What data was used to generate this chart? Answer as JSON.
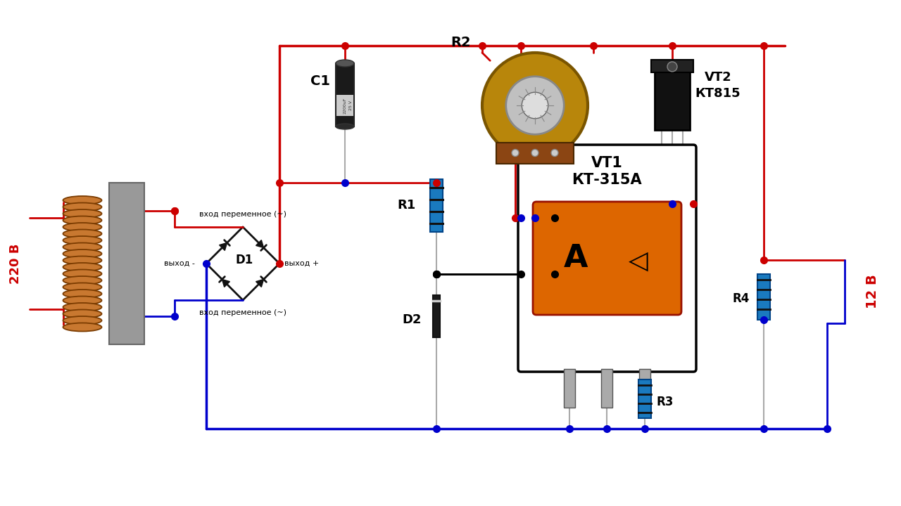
{
  "bg_color": "#ffffff",
  "red": "#cc0000",
  "blue": "#0000cc",
  "black": "#000000",
  "label_220": "220 В",
  "label_12": "12 В",
  "label_C1": "C1",
  "label_R1": "R1",
  "label_R2": "R2",
  "label_R3": "R3",
  "label_R4": "R4",
  "label_D1": "D1",
  "label_D2": "D2",
  "label_VT1": "VT1",
  "label_VT1_sub": "КТ-315А",
  "label_VT2": "VT2",
  "label_VT2_sub": "КТ815",
  "label_AC1": "вход переменное (~)",
  "label_AC2": "вход переменное (~)",
  "label_neg": "выход -",
  "label_pos": "выход +",
  "label_A": "A"
}
